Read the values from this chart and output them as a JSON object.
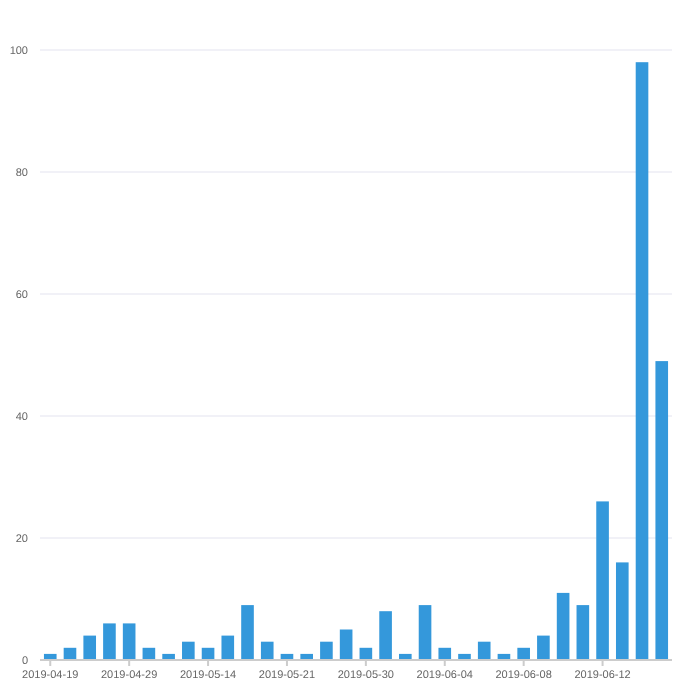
{
  "chart_data": {
    "type": "bar",
    "categories": [
      "2019-04-19",
      null,
      null,
      null,
      "2019-04-29",
      null,
      null,
      null,
      "2019-05-14",
      null,
      null,
      null,
      "2019-05-21",
      null,
      null,
      null,
      "2019-05-30",
      null,
      null,
      null,
      "2019-06-04",
      null,
      null,
      null,
      "2019-06-08",
      null,
      null,
      null,
      "2019-06-12",
      null,
      null,
      null
    ],
    "values": [
      1,
      2,
      4,
      6,
      6,
      2,
      1,
      3,
      2,
      4,
      9,
      3,
      1,
      1,
      3,
      5,
      2,
      8,
      1,
      9,
      2,
      1,
      3,
      1,
      2,
      4,
      11,
      9,
      26,
      16,
      98,
      49
    ],
    "color": "#3498db",
    "ylim": [
      0,
      100
    ],
    "yticks": [
      0,
      20,
      40,
      60,
      80,
      100
    ],
    "grid": "y"
  }
}
